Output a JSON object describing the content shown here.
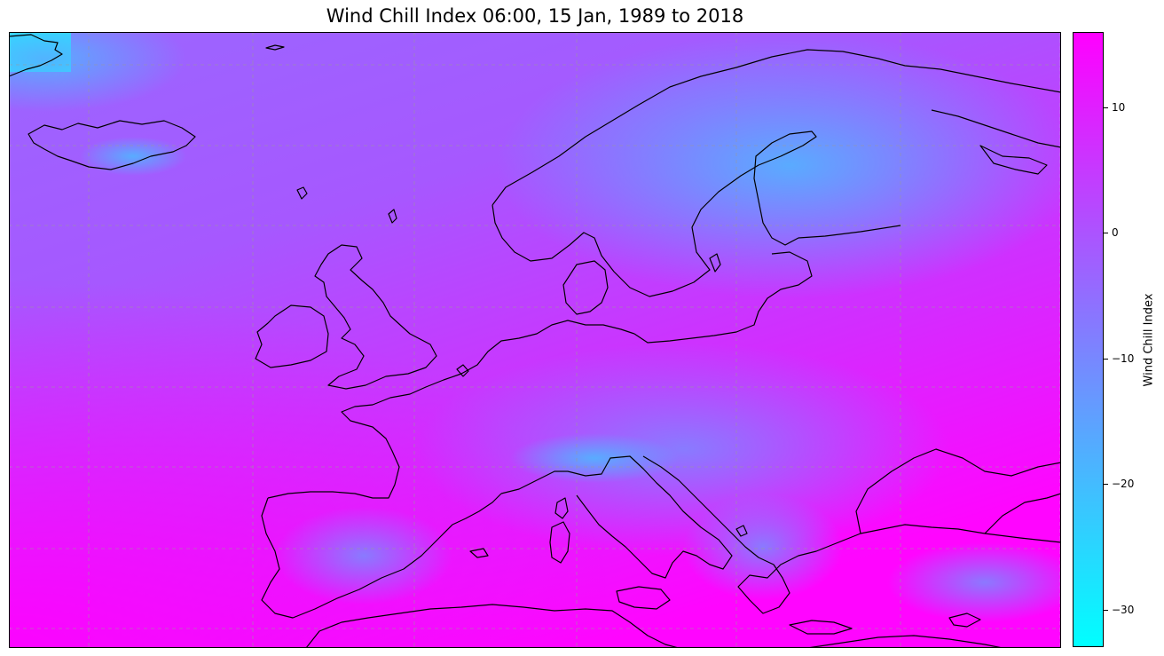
{
  "title": "Wind Chill Index 06:00, 15 Jan, 1989 to 2018",
  "map": {
    "region": "Europe",
    "variable": "Wind Chill Index",
    "colormap": "cool",
    "coastline_color": "#000000",
    "gridline_style": "dashed grey"
  },
  "colorbar": {
    "label": "Wind Chill Index",
    "min": -33,
    "max": 16,
    "color_min": "#00ffff",
    "color_max": "#ff00ff",
    "ticks": [
      {
        "value": 10,
        "label": "10"
      },
      {
        "value": 0,
        "label": "0"
      },
      {
        "value": -10,
        "label": "−10"
      },
      {
        "value": -20,
        "label": "−20"
      },
      {
        "value": -30,
        "label": "−30"
      }
    ]
  }
}
